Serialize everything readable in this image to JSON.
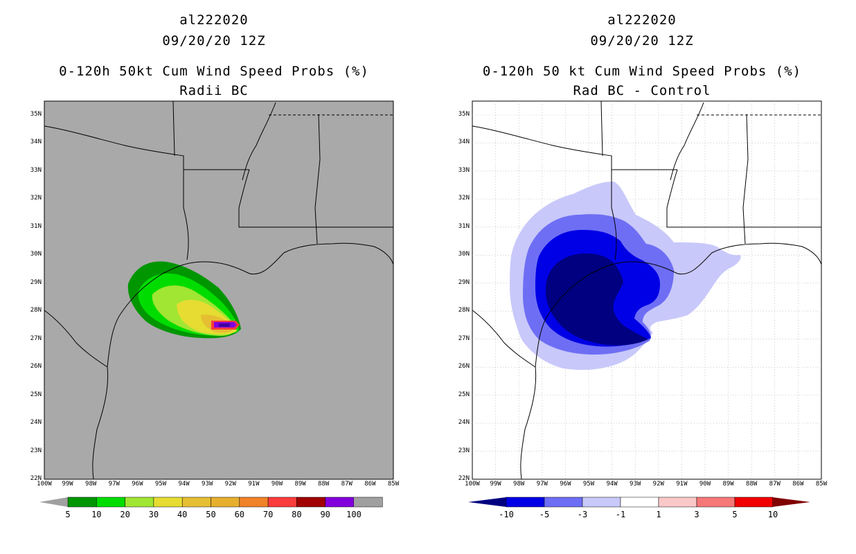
{
  "colors": {
    "land_gray": "#a9a9a9",
    "border": "#000000"
  },
  "lat_labels": [
    "35N",
    "34N",
    "33N",
    "32N",
    "31N",
    "30N",
    "29N",
    "28N",
    "27N",
    "26N",
    "25N",
    "24N",
    "23N",
    "22N"
  ],
  "lon_labels": [
    "100W",
    "99W",
    "98W",
    "97W",
    "96W",
    "95W",
    "94W",
    "93W",
    "92W",
    "91W",
    "90W",
    "89W",
    "88W",
    "87W",
    "86W",
    "85W"
  ],
  "left_panel": {
    "title1": "al222020",
    "title2": "09/20/20 12Z",
    "title3": "0-120h 50kt Cum Wind Speed Probs (%)",
    "title4": "Radii BC",
    "colorbar": {
      "labels": [
        "5",
        "10",
        "20",
        "30",
        "40",
        "50",
        "60",
        "70",
        "80",
        "90",
        "100"
      ],
      "colors": [
        "#009600",
        "#00dc00",
        "#a0e632",
        "#e6dc32",
        "#e6be32",
        "#e6af2d",
        "#f08228",
        "#fa3c3c",
        "#a00000",
        "#8200dc",
        "#a0a0a0"
      ]
    }
  },
  "right_panel": {
    "title1": "al222020",
    "title2": "09/20/20 12Z",
    "title3": "0-120h 50 kt Cum Wind Speed Probs (%)",
    "title4": "Rad BC - Control",
    "colorbar": {
      "labels": [
        "-10",
        "-5",
        "-3",
        "-1",
        "1",
        "3",
        "5",
        "10"
      ],
      "colors": [
        "#0000e6",
        "#6e6ef5",
        "#c8c8fa",
        "#ffffff",
        "#fac8c8",
        "#f57878",
        "#f00000"
      ]
    }
  }
}
